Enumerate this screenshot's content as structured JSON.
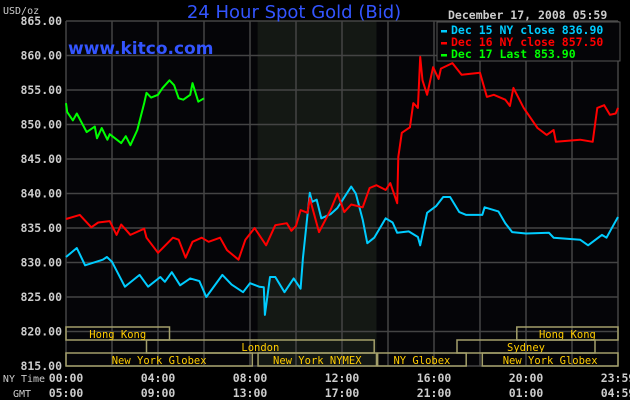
{
  "header": {
    "title": "24 Hour Spot Gold (Bid)",
    "website": "www.kitco.com",
    "timestamp": "December 17, 2008 05:59",
    "unit_label": "USD/oz"
  },
  "colors": {
    "title": "#3355ff",
    "dec15": "#00ccff",
    "dec16": "#ff0000",
    "dec17": "#00ff00",
    "session_text": "#ffcc00",
    "session_border": "#a39f6a",
    "grid": "#444444",
    "nymex_shade": "#141814"
  },
  "chart_data": {
    "type": "line",
    "title": "24 Hour Spot Gold (Bid)",
    "ylabel": "USD/oz",
    "ylim": [
      815,
      865
    ],
    "y_ticks": [
      "865.00",
      "860.00",
      "855.00",
      "850.00",
      "845.00",
      "840.00",
      "835.00",
      "830.00",
      "825.00",
      "820.00",
      "815.00"
    ],
    "xlim_hours": [
      0,
      24
    ],
    "x_rows": [
      {
        "label": "NY Time",
        "ticks": [
          "00:00",
          "04:00",
          "08:00",
          "12:00",
          "16:00",
          "20:00",
          "23:59"
        ]
      },
      {
        "label": "GMT",
        "ticks": [
          "05:00",
          "09:00",
          "13:00",
          "17:00",
          "21:00",
          "01:00",
          "04:59"
        ]
      }
    ],
    "grid": true,
    "legend_placement": "top-right",
    "shaded_region_hours": [
      8.33,
      13.5
    ],
    "series": [
      {
        "name": "Dec 15 NY close 836.90",
        "color": "#00ccff",
        "points": [
          [
            0,
            830.8
          ],
          [
            0.47,
            832.1
          ],
          [
            0.83,
            829.6
          ],
          [
            1.6,
            830.4
          ],
          [
            1.78,
            830.8
          ],
          [
            2.0,
            830.1
          ],
          [
            2.56,
            826.5
          ],
          [
            3.2,
            828.2
          ],
          [
            3.57,
            826.5
          ],
          [
            4.1,
            827.9
          ],
          [
            4.3,
            827.2
          ],
          [
            4.6,
            828.6
          ],
          [
            4.96,
            826.7
          ],
          [
            5.4,
            827.7
          ],
          [
            5.8,
            827.3
          ],
          [
            6.1,
            825.0
          ],
          [
            6.8,
            828.2
          ],
          [
            7.2,
            826.8
          ],
          [
            7.7,
            825.7
          ],
          [
            8.0,
            827.0
          ],
          [
            8.4,
            826.5
          ],
          [
            8.6,
            826.4
          ],
          [
            8.65,
            822.4
          ],
          [
            8.87,
            827.9
          ],
          [
            9.1,
            827.9
          ],
          [
            9.5,
            825.7
          ],
          [
            9.9,
            827.7
          ],
          [
            10.2,
            826.2
          ],
          [
            10.3,
            830.6
          ],
          [
            10.6,
            840.1
          ],
          [
            10.7,
            838.8
          ],
          [
            10.9,
            839.1
          ],
          [
            11.1,
            836.4
          ],
          [
            11.5,
            837.0
          ],
          [
            11.8,
            837.9
          ],
          [
            12.4,
            841.0
          ],
          [
            12.6,
            840.0
          ],
          [
            12.9,
            836.2
          ],
          [
            13.1,
            832.8
          ],
          [
            13.4,
            833.6
          ],
          [
            13.9,
            836.4
          ],
          [
            14.2,
            835.8
          ],
          [
            14.4,
            834.3
          ],
          [
            14.9,
            834.5
          ],
          [
            15.3,
            833.7
          ],
          [
            15.4,
            832.5
          ],
          [
            15.7,
            837.2
          ],
          [
            16.1,
            838.2
          ],
          [
            16.4,
            839.5
          ],
          [
            16.7,
            839.5
          ],
          [
            17.1,
            837.3
          ],
          [
            17.4,
            836.9
          ],
          [
            18.1,
            836.9
          ],
          [
            18.2,
            838.0
          ],
          [
            18.8,
            837.4
          ],
          [
            19.1,
            835.7
          ],
          [
            19.4,
            834.4
          ],
          [
            20.0,
            834.2
          ],
          [
            21.0,
            834.3
          ],
          [
            21.2,
            833.6
          ],
          [
            22.35,
            833.3
          ],
          [
            22.7,
            832.5
          ],
          [
            23.3,
            834.0
          ],
          [
            23.5,
            833.6
          ],
          [
            23.8,
            835.4
          ],
          [
            24,
            836.6
          ]
        ]
      },
      {
        "name": "Dec 16 NY close 857.50",
        "color": "#ff0000",
        "points": [
          [
            0,
            836.3
          ],
          [
            0.6,
            836.9
          ],
          [
            1.1,
            835.1
          ],
          [
            1.4,
            835.8
          ],
          [
            1.9,
            836.0
          ],
          [
            2.2,
            834.0
          ],
          [
            2.4,
            835.5
          ],
          [
            2.8,
            834.0
          ],
          [
            3.4,
            834.9
          ],
          [
            3.5,
            833.6
          ],
          [
            4.0,
            831.4
          ],
          [
            4.65,
            833.6
          ],
          [
            4.9,
            833.3
          ],
          [
            5.2,
            830.7
          ],
          [
            5.5,
            833.0
          ],
          [
            5.9,
            833.6
          ],
          [
            6.2,
            833.0
          ],
          [
            6.7,
            833.6
          ],
          [
            7.0,
            831.8
          ],
          [
            7.5,
            830.4
          ],
          [
            7.8,
            833.3
          ],
          [
            8.2,
            835.0
          ],
          [
            8.7,
            832.5
          ],
          [
            9.1,
            835.4
          ],
          [
            9.6,
            835.7
          ],
          [
            9.8,
            834.6
          ],
          [
            10.0,
            835.3
          ],
          [
            10.2,
            837.6
          ],
          [
            10.5,
            837.2
          ],
          [
            10.6,
            839.3
          ],
          [
            11.0,
            834.4
          ],
          [
            11.5,
            837.6
          ],
          [
            11.8,
            840.0
          ],
          [
            12.1,
            837.3
          ],
          [
            12.4,
            838.4
          ],
          [
            12.9,
            838.0
          ],
          [
            13.2,
            840.8
          ],
          [
            13.5,
            841.2
          ],
          [
            13.9,
            840.5
          ],
          [
            14.1,
            841.5
          ],
          [
            14.4,
            838.6
          ],
          [
            14.45,
            845.3
          ],
          [
            14.6,
            848.8
          ],
          [
            14.95,
            849.6
          ],
          [
            15.1,
            853.1
          ],
          [
            15.3,
            852.4
          ],
          [
            15.4,
            859.8
          ],
          [
            15.5,
            856.4
          ],
          [
            15.7,
            854.3
          ],
          [
            15.96,
            858.3
          ],
          [
            16.2,
            856.6
          ],
          [
            16.3,
            858.1
          ],
          [
            16.8,
            858.9
          ],
          [
            17.2,
            857.2
          ],
          [
            18.0,
            857.5
          ],
          [
            18.3,
            854.0
          ],
          [
            18.6,
            854.3
          ],
          [
            19.1,
            853.6
          ],
          [
            19.3,
            852.7
          ],
          [
            19.45,
            855.3
          ],
          [
            19.9,
            852.4
          ],
          [
            20.5,
            849.5
          ],
          [
            20.9,
            848.5
          ],
          [
            21.2,
            849.2
          ],
          [
            21.3,
            847.5
          ],
          [
            22.35,
            847.8
          ],
          [
            22.9,
            847.5
          ],
          [
            23.1,
            852.4
          ],
          [
            23.4,
            852.8
          ],
          [
            23.65,
            851.4
          ],
          [
            23.9,
            851.6
          ],
          [
            24,
            852.4
          ]
        ]
      },
      {
        "name": "Dec 17 Last 853.90",
        "color": "#00ff00",
        "points": [
          [
            0,
            853.1
          ],
          [
            0.05,
            851.8
          ],
          [
            0.3,
            850.6
          ],
          [
            0.47,
            851.6
          ],
          [
            0.9,
            848.9
          ],
          [
            1.25,
            849.7
          ],
          [
            1.35,
            848.0
          ],
          [
            1.55,
            849.5
          ],
          [
            1.8,
            847.8
          ],
          [
            1.9,
            848.6
          ],
          [
            2.4,
            847.3
          ],
          [
            2.6,
            848.3
          ],
          [
            2.8,
            847.0
          ],
          [
            3.1,
            849.2
          ],
          [
            3.4,
            853.1
          ],
          [
            3.5,
            854.6
          ],
          [
            3.7,
            853.9
          ],
          [
            4.0,
            854.3
          ],
          [
            4.2,
            855.3
          ],
          [
            4.5,
            856.4
          ],
          [
            4.7,
            855.7
          ],
          [
            4.9,
            853.8
          ],
          [
            5.1,
            853.6
          ],
          [
            5.4,
            854.3
          ],
          [
            5.5,
            856.0
          ],
          [
            5.75,
            853.3
          ],
          [
            6.0,
            853.8
          ]
        ]
      }
    ],
    "sessions": [
      {
        "label": "Hong Kong",
        "row": 0,
        "start": 0,
        "end": 4.5
      },
      {
        "label": "Hong Kong",
        "row": 0,
        "start": 19.6,
        "end": 24
      },
      {
        "label": "London",
        "row": 1,
        "start": 3.5,
        "end": 13.4
      },
      {
        "label": "Sydney",
        "row": 1,
        "start": 17.0,
        "end": 23.0
      },
      {
        "label": "New York Globex",
        "row": 2,
        "start": 0,
        "end": 8.1
      },
      {
        "label": "New York NYMEX",
        "row": 2,
        "start": 8.35,
        "end": 13.5
      },
      {
        "label": "NY Globex",
        "row": 2,
        "start": 13.55,
        "end": 17.4
      },
      {
        "label": "New York Globex",
        "row": 2,
        "start": 18.1,
        "end": 24
      }
    ]
  }
}
